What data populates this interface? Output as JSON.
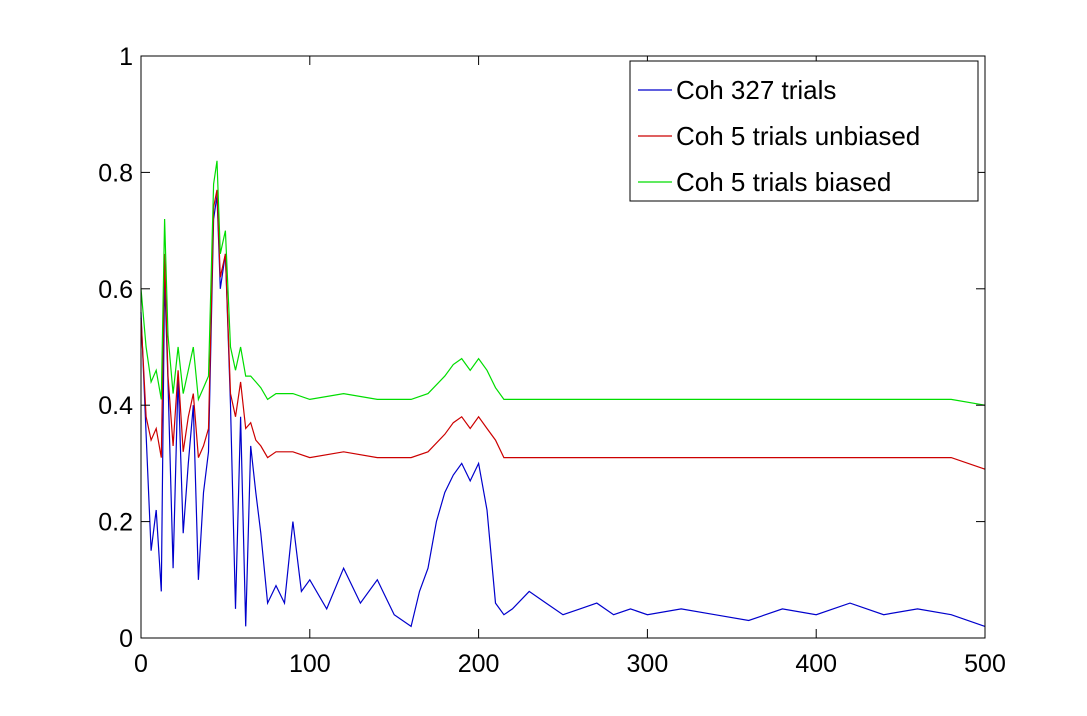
{
  "chart_data": {
    "type": "line",
    "title": "",
    "xlabel": "",
    "ylabel": "",
    "xlim": [
      0,
      500
    ],
    "ylim": [
      0,
      1
    ],
    "xticks": [
      0,
      100,
      200,
      300,
      400,
      500
    ],
    "yticks": [
      0,
      0.2,
      0.4,
      0.6,
      0.8,
      1
    ],
    "xtick_labels": [
      "0",
      "100",
      "200",
      "300",
      "400",
      "500"
    ],
    "ytick_labels": [
      "0",
      "0.2",
      "0.4",
      "0.6",
      "0.8",
      "1"
    ],
    "grid": false,
    "legend_position": "top-right",
    "series": [
      {
        "name": "Coh 327 trials",
        "color": "#0000cc",
        "x": [
          0,
          3,
          6,
          9,
          12,
          14,
          16,
          19,
          22,
          25,
          28,
          31,
          34,
          37,
          40,
          43,
          45,
          47,
          50,
          53,
          56,
          59,
          62,
          65,
          68,
          71,
          75,
          80,
          85,
          90,
          95,
          100,
          110,
          120,
          130,
          140,
          150,
          160,
          165,
          170,
          175,
          180,
          185,
          190,
          195,
          200,
          205,
          210,
          215,
          220,
          230,
          240,
          250,
          260,
          270,
          280,
          290,
          300,
          320,
          340,
          360,
          380,
          400,
          420,
          440,
          460,
          480,
          500
        ],
        "values": [
          0.56,
          0.35,
          0.15,
          0.22,
          0.08,
          0.62,
          0.44,
          0.12,
          0.45,
          0.18,
          0.3,
          0.4,
          0.1,
          0.25,
          0.32,
          0.72,
          0.76,
          0.6,
          0.66,
          0.4,
          0.05,
          0.38,
          0.02,
          0.33,
          0.25,
          0.18,
          0.06,
          0.09,
          0.06,
          0.2,
          0.08,
          0.1,
          0.05,
          0.12,
          0.06,
          0.1,
          0.04,
          0.02,
          0.08,
          0.12,
          0.2,
          0.25,
          0.28,
          0.3,
          0.27,
          0.3,
          0.22,
          0.06,
          0.04,
          0.05,
          0.08,
          0.06,
          0.04,
          0.05,
          0.06,
          0.04,
          0.05,
          0.04,
          0.05,
          0.04,
          0.03,
          0.05,
          0.04,
          0.06,
          0.04,
          0.05,
          0.04,
          0.02
        ]
      },
      {
        "name": "Coh 5 trials unbiased",
        "color": "#cc0000",
        "x": [
          0,
          3,
          6,
          9,
          12,
          14,
          16,
          19,
          22,
          25,
          28,
          31,
          34,
          37,
          40,
          43,
          45,
          47,
          50,
          53,
          56,
          59,
          62,
          65,
          68,
          71,
          75,
          80,
          90,
          100,
          120,
          140,
          160,
          170,
          180,
          185,
          190,
          195,
          200,
          205,
          210,
          215,
          220,
          240,
          260,
          280,
          300,
          320,
          340,
          360,
          380,
          400,
          420,
          440,
          460,
          480,
          500
        ],
        "values": [
          0.55,
          0.38,
          0.34,
          0.36,
          0.31,
          0.66,
          0.45,
          0.33,
          0.46,
          0.32,
          0.38,
          0.42,
          0.31,
          0.33,
          0.36,
          0.74,
          0.77,
          0.62,
          0.66,
          0.42,
          0.38,
          0.44,
          0.36,
          0.37,
          0.34,
          0.33,
          0.31,
          0.32,
          0.32,
          0.31,
          0.32,
          0.31,
          0.31,
          0.32,
          0.35,
          0.37,
          0.38,
          0.36,
          0.38,
          0.36,
          0.34,
          0.31,
          0.31,
          0.31,
          0.31,
          0.31,
          0.31,
          0.31,
          0.31,
          0.31,
          0.31,
          0.31,
          0.31,
          0.31,
          0.31,
          0.31,
          0.29
        ]
      },
      {
        "name": "Coh 5 trials biased",
        "color": "#00dd00",
        "x": [
          0,
          3,
          6,
          9,
          12,
          14,
          16,
          19,
          22,
          25,
          28,
          31,
          34,
          37,
          40,
          43,
          45,
          47,
          50,
          53,
          56,
          59,
          62,
          65,
          68,
          71,
          75,
          80,
          90,
          100,
          120,
          140,
          160,
          170,
          180,
          185,
          190,
          195,
          200,
          205,
          210,
          215,
          220,
          240,
          260,
          280,
          300,
          320,
          340,
          360,
          380,
          400,
          420,
          440,
          460,
          480,
          500
        ],
        "values": [
          0.6,
          0.5,
          0.44,
          0.46,
          0.41,
          0.72,
          0.52,
          0.42,
          0.5,
          0.42,
          0.46,
          0.5,
          0.41,
          0.43,
          0.45,
          0.78,
          0.82,
          0.66,
          0.7,
          0.5,
          0.46,
          0.5,
          0.45,
          0.45,
          0.44,
          0.43,
          0.41,
          0.42,
          0.42,
          0.41,
          0.42,
          0.41,
          0.41,
          0.42,
          0.45,
          0.47,
          0.48,
          0.46,
          0.48,
          0.46,
          0.43,
          0.41,
          0.41,
          0.41,
          0.41,
          0.41,
          0.41,
          0.41,
          0.41,
          0.41,
          0.41,
          0.41,
          0.41,
          0.41,
          0.41,
          0.41,
          0.4
        ]
      }
    ]
  }
}
